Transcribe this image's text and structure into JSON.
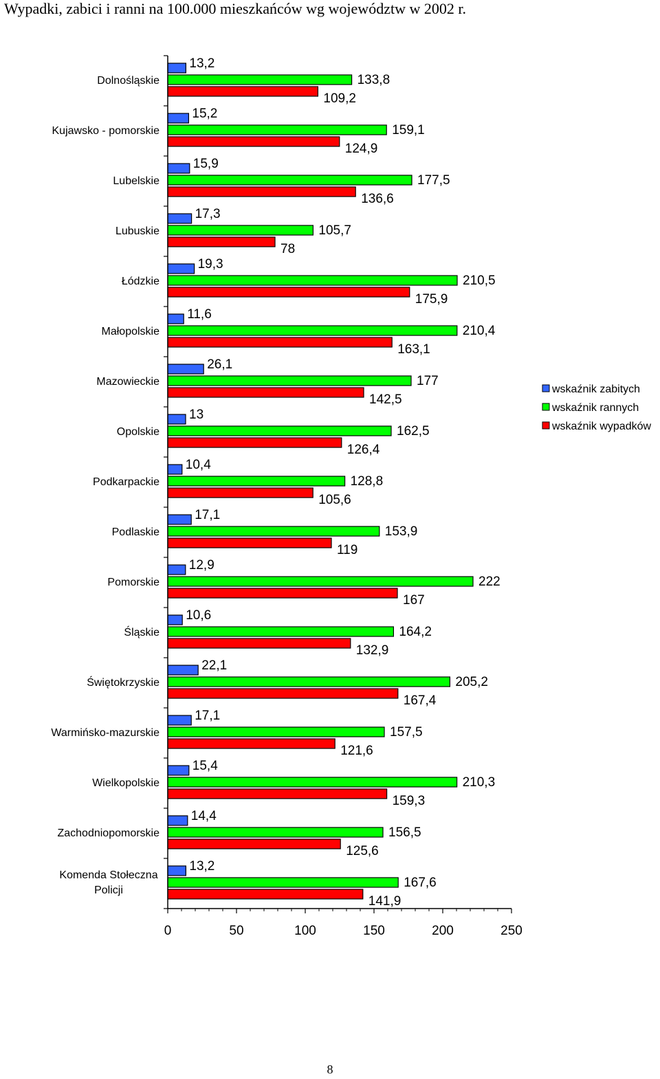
{
  "title": "Wypadki, zabici i ranni na 100.000 mieszkańców wg  województw w 2002 r.",
  "page_number": "8",
  "chart_data": {
    "type": "bar",
    "orientation": "horizontal",
    "categories": [
      "Dolnośląskie",
      "Kujawsko - pomorskie",
      "Lubelskie",
      "Lubuskie",
      "Łódzkie",
      "Małopolskie",
      "Mazowieckie",
      "Opolskie",
      "Podkarpackie",
      "Podlaskie",
      "Pomorskie",
      "Śląskie",
      "Świętokrzyskie",
      "Warmińsko-mazurskie",
      "Wielkopolskie",
      "Zachodniopomorskie",
      "Komenda Stołeczna Policji"
    ],
    "series": [
      {
        "name": "wskaźnik zabitych",
        "color": "#3366ff",
        "values": [
          13.2,
          15.2,
          15.9,
          17.3,
          19.3,
          11.6,
          26.1,
          13,
          10.4,
          17.1,
          12.9,
          10.6,
          22.1,
          17.1,
          15.4,
          14.4,
          13.2
        ],
        "labels": [
          "13,2",
          "15,2",
          "15,9",
          "17,3",
          "19,3",
          "11,6",
          "26,1",
          "13",
          "10,4",
          "17,1",
          "12,9",
          "10,6",
          "22,1",
          "17,1",
          "15,4",
          "14,4",
          "13,2"
        ]
      },
      {
        "name": "wskaźnik rannych",
        "color": "#00ff00",
        "values": [
          133.8,
          159.1,
          177.5,
          105.7,
          210.5,
          210.4,
          177,
          162.5,
          128.8,
          153.9,
          222,
          164.2,
          205.2,
          157.5,
          210.3,
          156.5,
          167.6
        ],
        "labels": [
          "133,8",
          "159,1",
          "177,5",
          "105,7",
          "210,5",
          "210,4",
          "177",
          "162,5",
          "128,8",
          "153,9",
          "222",
          "164,2",
          "205,2",
          "157,5",
          "210,3",
          "156,5",
          "167,6"
        ]
      },
      {
        "name": "wskaźnik wypadków",
        "color": "#ff0000",
        "values": [
          109.2,
          124.9,
          136.6,
          78,
          175.9,
          163.1,
          142.5,
          126.4,
          105.6,
          119,
          167,
          132.9,
          167.4,
          121.6,
          159.3,
          125.6,
          141.9
        ],
        "labels": [
          "109,2",
          "124,9",
          "136,6",
          "78",
          "175,9",
          "163,1",
          "142,5",
          "126,4",
          "105,6",
          "119",
          "167",
          "132,9",
          "167,4",
          "121,6",
          "159,3",
          "125,6",
          "141,9"
        ]
      }
    ],
    "xlim": [
      0,
      250
    ],
    "x_ticks": [
      0,
      50,
      100,
      150,
      200,
      250
    ],
    "x_tick_labels": [
      "0",
      "50",
      "100",
      "150",
      "200",
      "250"
    ],
    "legend_position": "right",
    "grid": false
  }
}
